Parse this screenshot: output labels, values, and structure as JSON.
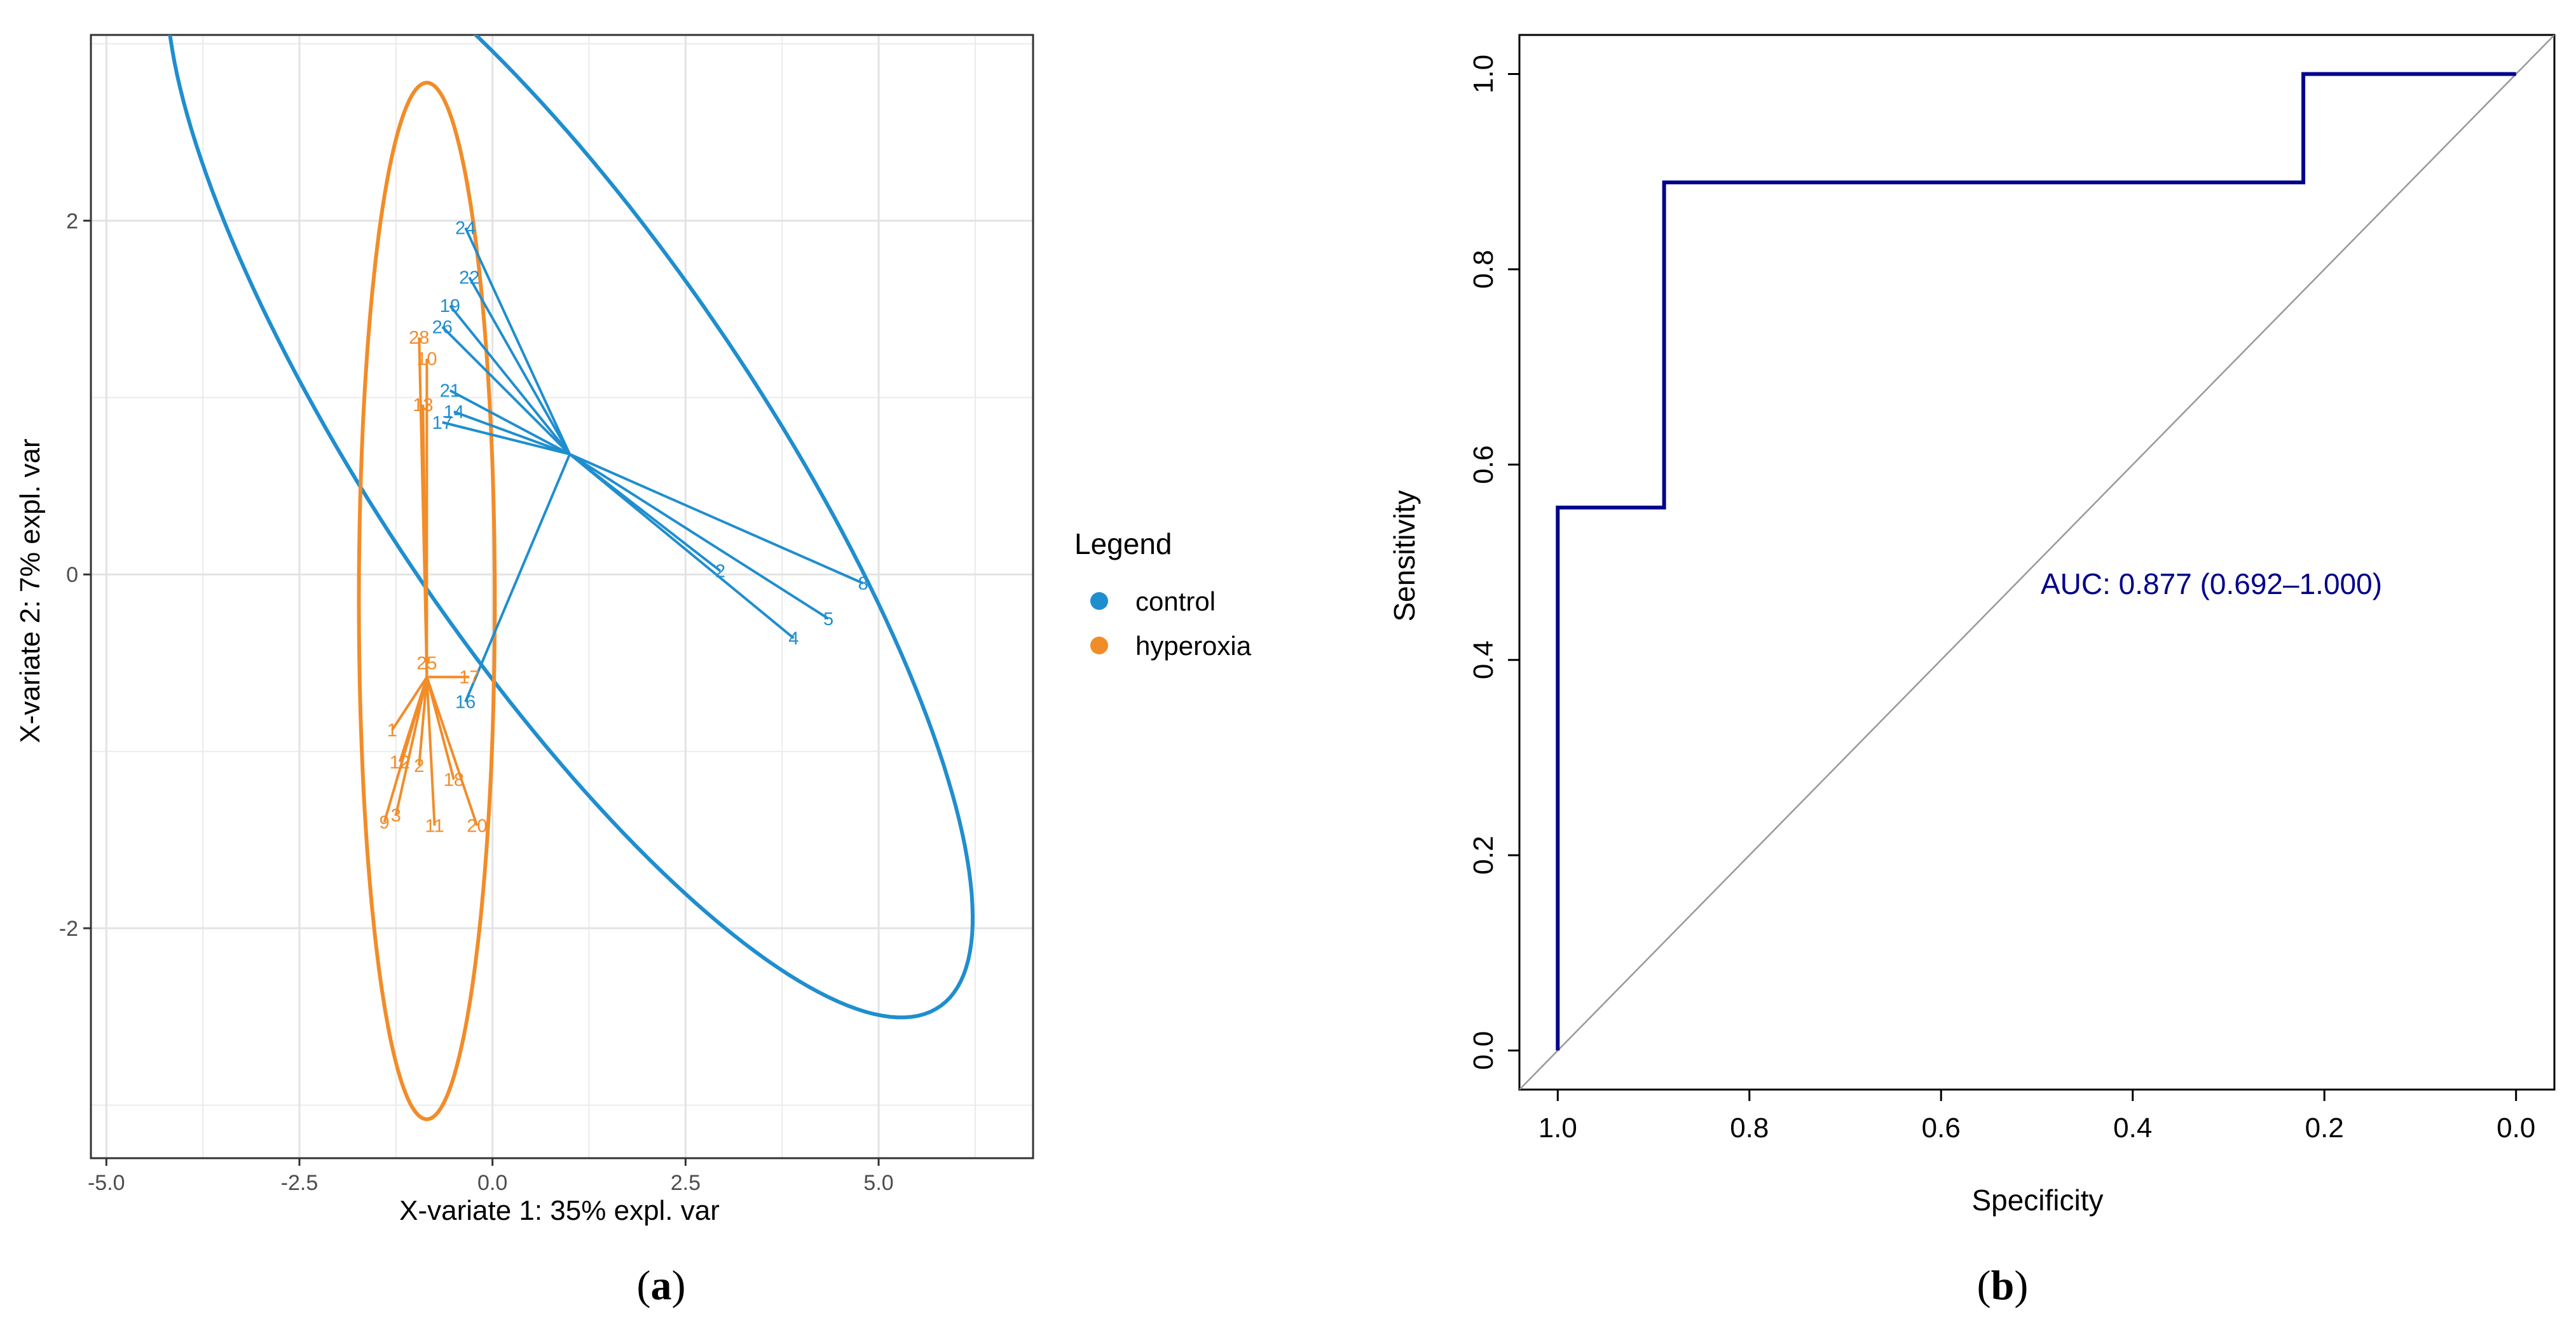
{
  "colors": {
    "control": "#1f8ecf",
    "hyperoxia": "#f28c28",
    "roc": "#00008b",
    "diag": "#999999",
    "grid": "#ebebeb",
    "text": "#4d4d4d"
  },
  "chart_data": [
    {
      "type": "scatter",
      "panel_label": "a",
      "xlabel": "X-variate 1: 35% expl. var",
      "ylabel": "X-variate 2: 7% expl. var",
      "xlim": [
        -5.2,
        7.0
      ],
      "ylim": [
        -3.3,
        3.05
      ],
      "xticks": [
        "-5.0",
        "-2.5",
        "0.0",
        "2.5",
        "5.0"
      ],
      "yticks": [
        "-2",
        "0",
        "2"
      ],
      "legend": {
        "title": "Legend",
        "position": "right",
        "entries": [
          "control",
          "hyperoxia"
        ]
      },
      "series": [
        {
          "name": "control",
          "centroid": [
            1.0,
            0.68
          ],
          "ellipse": {
            "cx": 1.0,
            "cy": 0.68,
            "rx": 5.9,
            "ry": 1.6,
            "angle_deg": -29
          },
          "points": [
            {
              "label": "24",
              "x": -0.35,
              "y": 1.96
            },
            {
              "label": "22",
              "x": -0.3,
              "y": 1.68
            },
            {
              "label": "19",
              "x": -0.55,
              "y": 1.52
            },
            {
              "label": "26",
              "x": -0.65,
              "y": 1.4
            },
            {
              "label": "21",
              "x": -0.55,
              "y": 1.04
            },
            {
              "label": "14",
              "x": -0.5,
              "y": 0.92
            },
            {
              "label": "17",
              "x": -0.65,
              "y": 0.86
            },
            {
              "label": "2",
              "x": 2.95,
              "y": 0.02
            },
            {
              "label": "8",
              "x": 4.8,
              "y": -0.05
            },
            {
              "label": "5",
              "x": 4.35,
              "y": -0.25
            },
            {
              "label": "4",
              "x": 3.9,
              "y": -0.36
            },
            {
              "label": "16",
              "x": -0.35,
              "y": -0.72
            }
          ]
        },
        {
          "name": "hyperoxia",
          "centroid": [
            -0.85,
            -0.58
          ],
          "ellipse": {
            "cx": -0.85,
            "cy": -0.15,
            "rx": 0.88,
            "ry": 2.93,
            "angle_deg": 0
          },
          "points": [
            {
              "label": "28",
              "x": -0.95,
              "y": 1.34
            },
            {
              "label": "10",
              "x": -0.85,
              "y": 1.22
            },
            {
              "label": "13",
              "x": -0.9,
              "y": 0.96
            },
            {
              "label": "25",
              "x": -0.85,
              "y": -0.5
            },
            {
              "label": "17",
              "x": -0.3,
              "y": -0.58
            },
            {
              "label": "1",
              "x": -1.3,
              "y": -0.88
            },
            {
              "label": "12",
              "x": -1.2,
              "y": -1.06
            },
            {
              "label": "2",
              "x": -0.95,
              "y": -1.08
            },
            {
              "label": "18",
              "x": -0.5,
              "y": -1.16
            },
            {
              "label": "9",
              "x": -1.4,
              "y": -1.4
            },
            {
              "label": "3",
              "x": -1.25,
              "y": -1.36
            },
            {
              "label": "11",
              "x": -0.75,
              "y": -1.42
            },
            {
              "label": "20",
              "x": -0.2,
              "y": -1.42
            }
          ]
        }
      ]
    },
    {
      "type": "line",
      "panel_label": "b",
      "xlabel": "Specificity",
      "ylabel": "Sensitivity",
      "xlim": [
        1.04,
        -0.04
      ],
      "ylim": [
        -0.04,
        1.04
      ],
      "xticks": [
        "1.0",
        "0.8",
        "0.6",
        "0.4",
        "0.2",
        "0.0"
      ],
      "yticks": [
        "0.0",
        "0.2",
        "0.4",
        "0.6",
        "0.8",
        "1.0"
      ],
      "annotation": "AUC: 0.877 (0.692–1.000)",
      "series": [
        {
          "name": "ROC",
          "x": [
            1.0,
            1.0,
            0.889,
            0.889,
            0.222,
            0.222,
            0.0
          ],
          "y": [
            0.0,
            0.556,
            0.556,
            0.889,
            0.889,
            1.0,
            1.0
          ]
        },
        {
          "name": "reference",
          "x": [
            1.04,
            -0.04
          ],
          "y": [
            -0.04,
            1.04
          ]
        }
      ]
    }
  ]
}
